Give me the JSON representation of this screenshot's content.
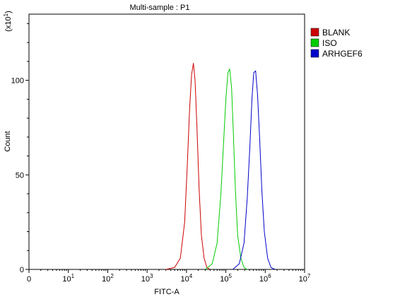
{
  "chart_data": {
    "type": "line",
    "title": "Multi-sample : P1",
    "xlabel": "FITC-A",
    "ylabel": "Count",
    "y_multiplier_label": "(x10",
    "y_multiplier_exp": "1",
    "y_multiplier_close": ")",
    "x_scale": "log",
    "xlim": [
      1,
      10000000
    ],
    "ylim": [
      0,
      135
    ],
    "x_ticks": [
      {
        "value": 1,
        "base": "0",
        "exp": ""
      },
      {
        "value": 10,
        "base": "10",
        "exp": "1"
      },
      {
        "value": 100,
        "base": "10",
        "exp": "2"
      },
      {
        "value": 1000,
        "base": "10",
        "exp": "3"
      },
      {
        "value": 10000,
        "base": "10",
        "exp": "4"
      },
      {
        "value": 100000,
        "base": "10",
        "exp": "5"
      },
      {
        "value": 1000000,
        "base": "10",
        "exp": "6"
      },
      {
        "value": 10000000,
        "base": "10",
        "exp": "7"
      }
    ],
    "y_ticks": [
      {
        "value": 0,
        "label": "0"
      },
      {
        "value": 50,
        "label": "50"
      },
      {
        "value": 100,
        "label": "100"
      }
    ],
    "grid": false,
    "legend_position": "top-right",
    "series": [
      {
        "name": "BLANK",
        "color": "#cc0000",
        "x": [
          3000,
          5000,
          7000,
          9000,
          10500,
          12000,
          13500,
          15000,
          16500,
          18500,
          21000,
          24000,
          28000,
          33000,
          40000
        ],
        "y": [
          0,
          1,
          6,
          25,
          55,
          85,
          103,
          109,
          100,
          75,
          42,
          18,
          6,
          1,
          0
        ]
      },
      {
        "name": "ISO",
        "color": "#00cc00",
        "x": [
          30000,
          45000,
          60000,
          75000,
          88000,
          100000,
          113000,
          125000,
          140000,
          155000,
          175000,
          200000,
          240000,
          290000,
          350000
        ],
        "y": [
          0,
          3,
          14,
          40,
          68,
          90,
          104,
          106,
          96,
          72,
          42,
          18,
          6,
          1,
          0
        ]
      },
      {
        "name": "ARHGEF6",
        "color": "#0000cc",
        "x": [
          150000,
          220000,
          290000,
          350000,
          410000,
          460000,
          510000,
          570000,
          640000,
          720000,
          820000,
          950000,
          1150000,
          1400000,
          1800000
        ],
        "y": [
          0,
          3,
          14,
          38,
          66,
          90,
          104,
          105,
          92,
          70,
          42,
          20,
          6,
          1,
          0
        ]
      }
    ]
  }
}
